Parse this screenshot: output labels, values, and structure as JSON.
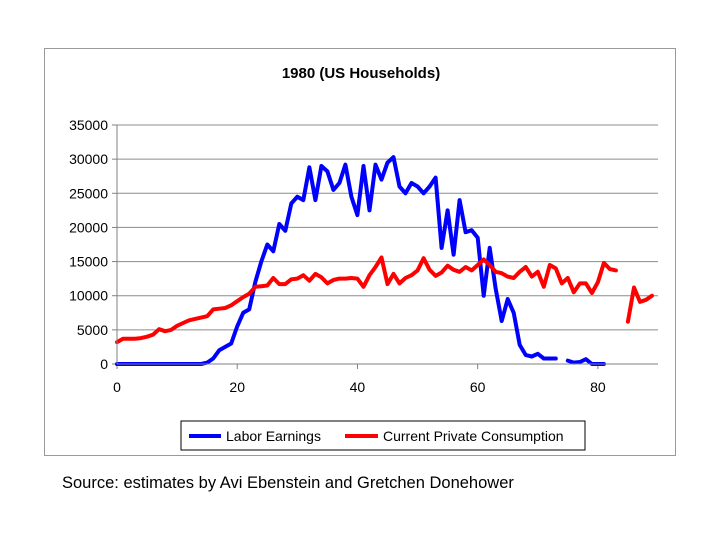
{
  "source_note": "Source: estimates by Avi Ebenstein and Gretchen Donehower",
  "chart_data": {
    "type": "line",
    "title": "1980 (US Households)",
    "xlabel": "",
    "ylabel": "",
    "xlim": [
      0,
      90
    ],
    "ylim": [
      0,
      35000
    ],
    "x_ticks": [
      0,
      20,
      40,
      60,
      80
    ],
    "y_ticks": [
      0,
      5000,
      10000,
      15000,
      20000,
      25000,
      30000,
      35000
    ],
    "grid": "horizontal",
    "legend_position": "bottom",
    "series": [
      {
        "name": "Labor Earnings",
        "color": "#0000ff",
        "segments": [
          [
            [
              0,
              0
            ],
            [
              5,
              0
            ],
            [
              10,
              0
            ],
            [
              14,
              0
            ],
            [
              15,
              200
            ],
            [
              16,
              800
            ],
            [
              17,
              2000
            ],
            [
              18,
              2500
            ],
            [
              19,
              3000
            ],
            [
              20,
              5500
            ],
            [
              21,
              7500
            ],
            [
              22,
              8000
            ],
            [
              23,
              12000
            ],
            [
              24,
              15000
            ],
            [
              25,
              17500
            ],
            [
              26,
              16500
            ],
            [
              27,
              20500
            ],
            [
              28,
              19500
            ],
            [
              29,
              23500
            ],
            [
              30,
              24500
            ],
            [
              31,
              24000
            ],
            [
              32,
              28800
            ],
            [
              33,
              24000
            ],
            [
              34,
              29000
            ],
            [
              35,
              28200
            ],
            [
              36,
              25500
            ],
            [
              37,
              26500
            ],
            [
              38,
              29200
            ],
            [
              39,
              24500
            ],
            [
              40,
              21800
            ],
            [
              41,
              29000
            ],
            [
              42,
              22500
            ],
            [
              43,
              29200
            ],
            [
              44,
              27000
            ],
            [
              45,
              29500
            ],
            [
              46,
              30300
            ],
            [
              47,
              26000
            ],
            [
              48,
              25000
            ],
            [
              49,
              26500
            ],
            [
              50,
              26000
            ],
            [
              51,
              25000
            ],
            [
              52,
              26000
            ],
            [
              53,
              27300
            ],
            [
              54,
              17000
            ],
            [
              55,
              22500
            ],
            [
              56,
              16000
            ],
            [
              57,
              24000
            ],
            [
              58,
              19300
            ],
            [
              59,
              19600
            ],
            [
              60,
              18500
            ],
            [
              61,
              10000
            ],
            [
              62,
              17000
            ],
            [
              63,
              11000
            ],
            [
              64,
              6300
            ],
            [
              65,
              9500
            ],
            [
              66,
              7500
            ],
            [
              67,
              2800
            ],
            [
              68,
              1300
            ],
            [
              69,
              1100
            ],
            [
              70,
              1500
            ],
            [
              71,
              800
            ],
            [
              72,
              800
            ],
            [
              73,
              800
            ]
          ],
          [
            [
              75,
              500
            ],
            [
              76,
              200
            ],
            [
              77,
              300
            ],
            [
              78,
              700
            ],
            [
              79,
              0
            ],
            [
              80,
              0
            ],
            [
              81,
              0
            ]
          ]
        ]
      },
      {
        "name": "Current Private Consumption",
        "color": "#ff0000",
        "segments": [
          [
            [
              0,
              3200
            ],
            [
              1,
              3700
            ],
            [
              2,
              3700
            ],
            [
              3,
              3700
            ],
            [
              4,
              3800
            ],
            [
              5,
              4000
            ],
            [
              6,
              4300
            ],
            [
              7,
              5100
            ],
            [
              8,
              4800
            ],
            [
              9,
              5000
            ],
            [
              10,
              5600
            ],
            [
              11,
              6000
            ],
            [
              12,
              6400
            ],
            [
              13,
              6600
            ],
            [
              14,
              6800
            ],
            [
              15,
              7000
            ],
            [
              16,
              8000
            ],
            [
              17,
              8100
            ],
            [
              18,
              8200
            ],
            [
              19,
              8600
            ],
            [
              20,
              9200
            ],
            [
              21,
              9800
            ],
            [
              22,
              10300
            ],
            [
              23,
              11300
            ],
            [
              24,
              11400
            ],
            [
              25,
              11500
            ],
            [
              26,
              12600
            ],
            [
              27,
              11700
            ],
            [
              28,
              11700
            ],
            [
              29,
              12400
            ],
            [
              30,
              12500
            ],
            [
              31,
              13000
            ],
            [
              32,
              12200
            ],
            [
              33,
              13200
            ],
            [
              34,
              12700
            ],
            [
              35,
              11800
            ],
            [
              36,
              12300
            ],
            [
              37,
              12500
            ],
            [
              38,
              12500
            ],
            [
              39,
              12600
            ],
            [
              40,
              12500
            ],
            [
              41,
              11300
            ],
            [
              42,
              13000
            ],
            [
              43,
              14200
            ],
            [
              44,
              15600
            ],
            [
              45,
              11700
            ],
            [
              46,
              13200
            ],
            [
              47,
              11800
            ],
            [
              48,
              12600
            ],
            [
              49,
              13000
            ],
            [
              50,
              13700
            ],
            [
              51,
              15500
            ],
            [
              52,
              13800
            ],
            [
              53,
              12900
            ],
            [
              54,
              13400
            ],
            [
              55,
              14400
            ],
            [
              56,
              13800
            ],
            [
              57,
              13500
            ],
            [
              58,
              14200
            ],
            [
              59,
              13700
            ],
            [
              60,
              14500
            ],
            [
              61,
              15300
            ],
            [
              62,
              14500
            ],
            [
              63,
              13500
            ],
            [
              64,
              13300
            ],
            [
              65,
              12800
            ],
            [
              66,
              12600
            ],
            [
              67,
              13500
            ],
            [
              68,
              14200
            ],
            [
              69,
              12800
            ],
            [
              70,
              13500
            ],
            [
              71,
              11300
            ],
            [
              72,
              14500
            ],
            [
              73,
              14000
            ],
            [
              74,
              11800
            ],
            [
              75,
              12600
            ],
            [
              76,
              10500
            ],
            [
              77,
              11800
            ],
            [
              78,
              11800
            ],
            [
              79,
              10400
            ],
            [
              80,
              12000
            ],
            [
              81,
              14800
            ],
            [
              82,
              13900
            ],
            [
              83,
              13700
            ]
          ],
          [
            [
              85,
              6200
            ],
            [
              86,
              11200
            ],
            [
              87,
              9100
            ],
            [
              88,
              9400
            ],
            [
              89,
              10000
            ]
          ]
        ]
      }
    ]
  }
}
